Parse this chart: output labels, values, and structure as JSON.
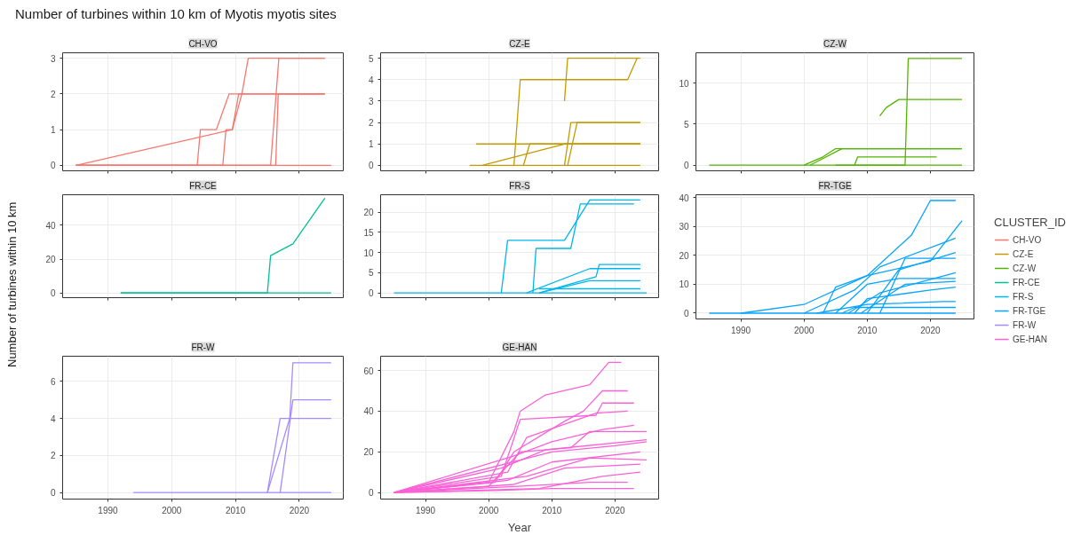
{
  "chart_data": [
    {
      "type": "line",
      "title": "CH-VO",
      "annotations": [
        "Number of turbines within 10 km of Myotis myotis sites"
      ],
      "legend": "right",
      "legend_title": "CLUSTER_ID",
      "xlim": [
        1982.9,
        2026.9
      ],
      "xticks": [
        1990,
        2000,
        2010,
        2020
      ],
      "ylim": [
        -0.15,
        3.15
      ],
      "yticks": [
        0,
        1,
        2,
        3
      ],
      "grid": true,
      "tick_labels": "y",
      "series": [
        {
          "name": "CH-VO",
          "color": "#f8766d",
          "x": [
            1985,
            2025
          ],
          "values": [
            0,
            0
          ]
        },
        {
          "color": "#f8766d",
          "x": [
            1985,
            2004,
            2004.5,
            2007,
            2009,
            2024
          ],
          "values": [
            0,
            0,
            1,
            1,
            2,
            2
          ]
        },
        {
          "color": "#f8766d",
          "x": [
            1985,
            2008,
            2008.5,
            2009.5,
            2010.5,
            2024
          ],
          "values": [
            0,
            0,
            1,
            1,
            2,
            2
          ]
        },
        {
          "color": "#f8766d",
          "x": [
            1985,
            2009.5,
            2011,
            2012,
            2024
          ],
          "values": [
            0,
            1,
            2,
            3,
            3
          ]
        },
        {
          "color": "#f8766d",
          "x": [
            1985,
            2015.5,
            2016.8,
            2024
          ],
          "values": [
            0,
            0,
            3,
            3
          ]
        },
        {
          "color": "#f8766d",
          "x": [
            1985,
            2016.3,
            2016.7,
            2024
          ],
          "values": [
            0,
            0,
            2,
            2
          ]
        }
      ]
    },
    {
      "type": "line",
      "title": "CZ-E",
      "xlim": [
        1982.9,
        2026.9
      ],
      "xticks": [
        1990,
        2000,
        2010,
        2020
      ],
      "ylim": [
        -0.25,
        5.25
      ],
      "yticks": [
        0,
        1,
        2,
        3,
        4,
        5
      ],
      "grid": true,
      "tick_labels": "y",
      "series": [
        {
          "name": "CZ-E",
          "color": "#c49a00",
          "x": [
            1997,
            2024
          ],
          "values": [
            0,
            0
          ]
        },
        {
          "color": "#c49a00",
          "x": [
            1998,
            2024
          ],
          "values": [
            1,
            1
          ]
        },
        {
          "color": "#c49a00",
          "x": [
            1999,
            2012,
            2024
          ],
          "values": [
            0,
            1,
            1
          ]
        },
        {
          "color": "#c49a00",
          "x": [
            2004,
            2005,
            2022,
            2023.5
          ],
          "values": [
            0,
            4,
            4,
            5
          ]
        },
        {
          "color": "#c49a00",
          "x": [
            2012,
            2012.5,
            2024
          ],
          "values": [
            3,
            5,
            5
          ]
        },
        {
          "color": "#c49a00",
          "x": [
            2005.5,
            2006.5,
            2024
          ],
          "values": [
            0,
            1,
            1
          ]
        },
        {
          "color": "#c49a00",
          "x": [
            2012,
            2013,
            2024
          ],
          "values": [
            0,
            2,
            2
          ]
        },
        {
          "color": "#c49a00",
          "x": [
            2012.5,
            2014,
            2024
          ],
          "values": [
            0,
            2,
            2
          ]
        }
      ]
    },
    {
      "type": "line",
      "title": "CZ-W",
      "xlim": [
        1982.9,
        2026.9
      ],
      "xticks": [
        1990,
        2000,
        2010,
        2020
      ],
      "ylim": [
        -0.7,
        13.7
      ],
      "yticks": [
        0,
        5,
        10
      ],
      "grid": true,
      "tick_labels": "y",
      "series": [
        {
          "name": "CZ-W",
          "color": "#53b400",
          "x": [
            1985,
            2025
          ],
          "values": [
            0,
            0
          ]
        },
        {
          "color": "#53b400",
          "x": [
            2000,
            2003,
            2005,
            2025
          ],
          "values": [
            0,
            1,
            2,
            2
          ]
        },
        {
          "color": "#53b400",
          "x": [
            2001,
            2006,
            2025
          ],
          "values": [
            0,
            2,
            2
          ]
        },
        {
          "color": "#53b400",
          "x": [
            2012,
            2013,
            2015,
            2025
          ],
          "values": [
            6,
            7,
            8,
            8
          ]
        },
        {
          "color": "#53b400",
          "x": [
            2005,
            2016,
            2016.5,
            2025
          ],
          "values": [
            0,
            0,
            13,
            13
          ]
        },
        {
          "color": "#53b400",
          "x": [
            2008,
            2008.5,
            2021
          ],
          "values": [
            0,
            1,
            1
          ]
        }
      ]
    },
    {
      "type": "line",
      "title": "FR-CE",
      "ylabel": "Number of turbines within 10 km",
      "xlim": [
        1982.9,
        2026.9
      ],
      "xticks": [
        1990,
        2000,
        2010,
        2020
      ],
      "ylim": [
        -2.8,
        58
      ],
      "yticks": [
        0,
        20,
        40
      ],
      "grid": true,
      "tick_labels": "y",
      "series": [
        {
          "name": "FR-CE",
          "color": "#00c094",
          "x": [
            1992,
            2025
          ],
          "values": [
            0,
            0
          ]
        },
        {
          "color": "#00c094",
          "x": [
            1992,
            2015,
            2015.5,
            2019,
            2024
          ],
          "values": [
            0,
            0,
            22,
            29,
            56
          ]
        }
      ]
    },
    {
      "type": "line",
      "title": "FR-S",
      "xlim": [
        1982.9,
        2026.9
      ],
      "xticks": [
        1990,
        2000,
        2010,
        2020
      ],
      "ylim": [
        -1.2,
        24.3
      ],
      "yticks": [
        0,
        5,
        10,
        15,
        20
      ],
      "grid": true,
      "tick_labels": "y",
      "series": [
        {
          "name": "FR-S",
          "color": "#00b6eb",
          "x": [
            1985,
            2025
          ],
          "values": [
            0,
            0
          ]
        },
        {
          "color": "#00b6eb",
          "x": [
            2002,
            2003,
            2012,
            2016,
            2024
          ],
          "values": [
            0,
            13,
            13,
            23,
            23
          ]
        },
        {
          "color": "#00b6eb",
          "x": [
            2007,
            2007.5,
            2013,
            2014.5,
            2023
          ],
          "values": [
            0,
            11,
            11,
            22,
            22
          ]
        },
        {
          "color": "#00b6eb",
          "x": [
            2008,
            2017,
            2017.5,
            2024
          ],
          "values": [
            0,
            4,
            7,
            7
          ]
        },
        {
          "color": "#00b6eb",
          "x": [
            2006,
            2016,
            2024
          ],
          "values": [
            0,
            6,
            6
          ]
        },
        {
          "color": "#00b6eb",
          "x": [
            2008,
            2016,
            2024
          ],
          "values": [
            0,
            3,
            3
          ]
        },
        {
          "color": "#00b6eb",
          "x": [
            2008,
            2024
          ],
          "values": [
            1,
            1
          ]
        }
      ]
    },
    {
      "type": "line",
      "title": "FR-TGE",
      "xlim": [
        1982.9,
        2026.9
      ],
      "xticks": [
        1990,
        2000,
        2010,
        2020
      ],
      "ylim": [
        -2,
        41
      ],
      "yticks": [
        0,
        10,
        20,
        30,
        40
      ],
      "grid": true,
      "series": [
        {
          "name": "FR-TGE",
          "color": "#06a4ff",
          "x": [
            1985,
            2024
          ],
          "values": [
            0,
            0
          ]
        },
        {
          "color": "#06a4ff",
          "x": [
            1990,
            2000,
            2010,
            2017,
            2020,
            2024
          ],
          "values": [
            0,
            3,
            13,
            27,
            39,
            39
          ]
        },
        {
          "color": "#06a4ff",
          "x": [
            2003,
            2005,
            2010,
            2020,
            2025
          ],
          "values": [
            0,
            9,
            13,
            18,
            32
          ]
        },
        {
          "color": "#06a4ff",
          "x": [
            2000,
            2008,
            2012,
            2024
          ],
          "values": [
            0,
            8,
            16,
            26
          ]
        },
        {
          "color": "#06a4ff",
          "x": [
            2005,
            2010,
            2015,
            2024
          ],
          "values": [
            0,
            10,
            12,
            12
          ]
        },
        {
          "color": "#06a4ff",
          "x": [
            2007,
            2012,
            2024
          ],
          "values": [
            0,
            7,
            14
          ]
        },
        {
          "color": "#06a4ff",
          "x": [
            2008,
            2010,
            2020,
            2024
          ],
          "values": [
            0,
            5,
            8,
            9
          ]
        },
        {
          "color": "#06a4ff",
          "x": [
            2002,
            2010,
            2022,
            2024
          ],
          "values": [
            0,
            3,
            4,
            4
          ]
        },
        {
          "color": "#06a4ff",
          "x": [
            2010,
            2015,
            2024
          ],
          "values": [
            0,
            15,
            21
          ]
        },
        {
          "color": "#06a4ff",
          "x": [
            2006,
            2008,
            2024
          ],
          "values": [
            0,
            2,
            2
          ]
        },
        {
          "color": "#06a4ff",
          "x": [
            2012,
            2016,
            2024
          ],
          "values": [
            0,
            19,
            19
          ]
        },
        {
          "color": "#06a4ff",
          "x": [
            2009,
            2016,
            2024
          ],
          "values": [
            0,
            10,
            11
          ]
        }
      ]
    },
    {
      "type": "line",
      "title": "FR-W",
      "xlim": [
        1982.9,
        2026.9
      ],
      "xticks": [
        1990,
        2000,
        2010,
        2020
      ],
      "ylim": [
        -0.35,
        7.35
      ],
      "yticks": [
        0,
        2,
        4,
        6
      ],
      "grid": true,
      "series": [
        {
          "name": "FR-W",
          "color": "#a58aff",
          "x": [
            1994,
            2025
          ],
          "values": [
            0,
            0
          ]
        },
        {
          "color": "#a58aff",
          "x": [
            2015,
            2017,
            2025
          ],
          "values": [
            0,
            4,
            4
          ]
        },
        {
          "color": "#a58aff",
          "x": [
            2017,
            2019,
            2025
          ],
          "values": [
            0,
            5,
            5
          ]
        },
        {
          "color": "#a58aff",
          "x": [
            2015,
            2018.5,
            2019,
            2025
          ],
          "values": [
            0,
            4,
            7,
            7
          ]
        }
      ]
    },
    {
      "type": "line",
      "title": "GE-HAN",
      "xlabel": "Year",
      "xlim": [
        1982.9,
        2026.9
      ],
      "xticks": [
        1990,
        2000,
        2010,
        2020
      ],
      "ylim": [
        -3.2,
        67
      ],
      "yticks": [
        0,
        20,
        40,
        60
      ],
      "grid": true,
      "series": [
        {
          "name": "GE-HAN",
          "color": "#fb61d7",
          "x": [
            1985,
            2000,
            2004,
            2005,
            2009,
            2016,
            2019,
            2021
          ],
          "values": [
            0,
            5,
            30,
            40,
            48,
            53,
            64,
            64
          ]
        },
        {
          "color": "#fb61d7",
          "x": [
            1985,
            2001,
            2004,
            2012,
            2015,
            2018,
            2022
          ],
          "values": [
            0,
            5,
            20,
            35,
            40,
            50,
            50
          ]
        },
        {
          "color": "#fb61d7",
          "x": [
            1985,
            2002,
            2005,
            2017,
            2018,
            2023
          ],
          "values": [
            0,
            8,
            36,
            38,
            44,
            44
          ]
        },
        {
          "color": "#fb61d7",
          "x": [
            1985,
            2003,
            2006,
            2017,
            2022
          ],
          "values": [
            0,
            10,
            27,
            39,
            40
          ]
        },
        {
          "color": "#fb61d7",
          "x": [
            1985,
            2004,
            2010,
            2018,
            2023
          ],
          "values": [
            0,
            18,
            25,
            31,
            33
          ]
        },
        {
          "color": "#fb61d7",
          "x": [
            1985,
            2000,
            2005,
            2013,
            2016,
            2025
          ],
          "values": [
            0,
            3,
            20,
            22,
            30,
            30
          ]
        },
        {
          "color": "#fb61d7",
          "x": [
            1985,
            2002,
            2009,
            2025
          ],
          "values": [
            0,
            12,
            21,
            26
          ]
        },
        {
          "color": "#fb61d7",
          "x": [
            1985,
            2003,
            2010,
            2024
          ],
          "values": [
            0,
            6,
            15,
            20
          ]
        },
        {
          "color": "#fb61d7",
          "x": [
            1985,
            2004,
            2012,
            2024
          ],
          "values": [
            0,
            4,
            12,
            14
          ]
        },
        {
          "color": "#fb61d7",
          "x": [
            1985,
            2006,
            2016,
            2025
          ],
          "values": [
            0,
            8,
            17,
            16
          ]
        },
        {
          "color": "#fb61d7",
          "x": [
            1985,
            2008,
            2018,
            2024
          ],
          "values": [
            0,
            2,
            8,
            10
          ]
        },
        {
          "color": "#fb61d7",
          "x": [
            1985,
            2004,
            2016,
            2022
          ],
          "values": [
            0,
            3,
            5,
            5
          ]
        },
        {
          "color": "#fb61d7",
          "x": [
            1985,
            2001,
            2010,
            2023
          ],
          "values": [
            0,
            1,
            2,
            2
          ]
        },
        {
          "color": "#fb61d7",
          "x": [
            1985,
            2010,
            2020,
            2025
          ],
          "values": [
            0,
            20,
            23,
            25
          ]
        }
      ]
    }
  ]
}
